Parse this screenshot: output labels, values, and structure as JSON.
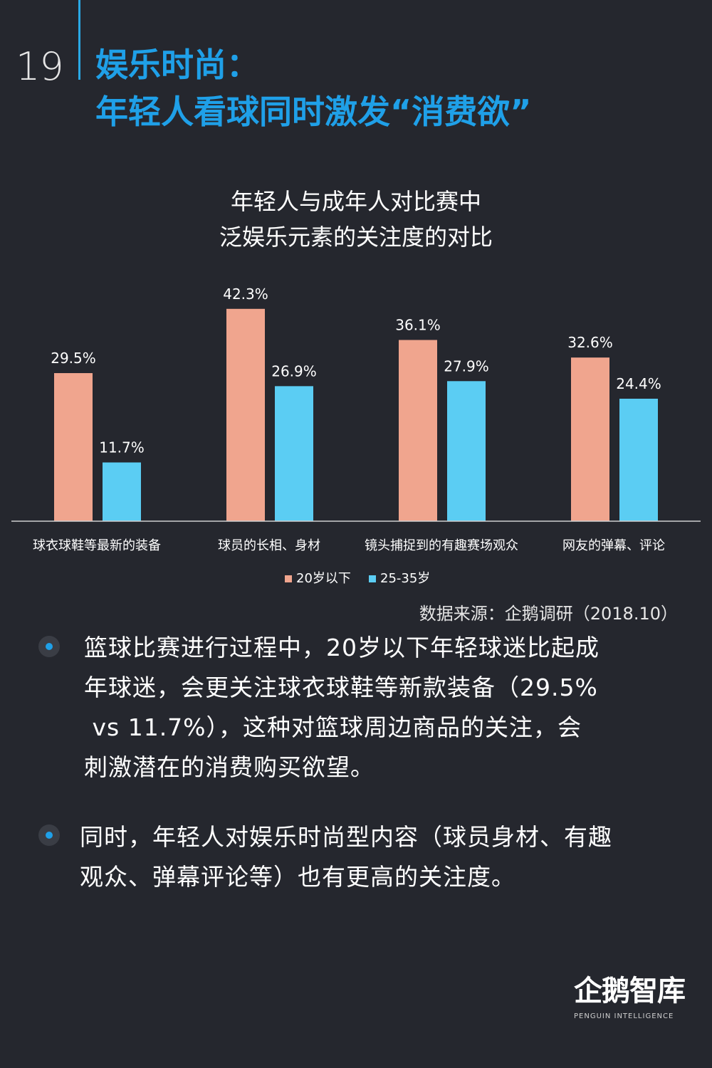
{
  "header": {
    "page_number": "19",
    "title_line1": "娱乐时尚：",
    "title_line2": "年轻人看球同时激发“消费欲”"
  },
  "chart_data": {
    "type": "bar",
    "title_line1": "年轻人与成年人对比赛中",
    "title_line2": "泛娱乐元素的关注度的对比",
    "categories": [
      "球衣球鞋等最新的装备",
      "球员的长相、身材",
      "镜头捕捉到的有趣赛场观众",
      "网友的弹幕、评论"
    ],
    "series": [
      {
        "name": "20岁以下",
        "values": [
          29.5,
          42.3,
          36.1,
          32.6
        ],
        "labels": [
          "29.5%",
          "42.3%",
          "36.1%",
          "32.6%"
        ],
        "color": "#f0a58e"
      },
      {
        "name": "25-35岁",
        "values": [
          11.7,
          26.9,
          27.9,
          24.4
        ],
        "labels": [
          "11.7%",
          "26.9%",
          "27.9%",
          "24.4%"
        ],
        "color": "#5bcdf3"
      }
    ],
    "ylim": [
      0,
      50
    ],
    "legend_position": "bottom-center",
    "grid": false
  },
  "source": "数据来源：企鹅调研（2018.10）",
  "paragraphs": [
    {
      "lines": [
        "篮球比赛进行过程中，20岁以下年轻球迷比起成",
        "年球迷，会更关注球衣球鞋等新款装备（29.5%",
        " vs 11.7%），这种对篮球周边商品的关注，会",
        "刺激潜在的消费购买欲望。"
      ]
    },
    {
      "lines": [
        "同时，年轻人对娱乐时尚型内容（球员身材、有趣",
        "观众、弹幕评论等）也有更高的关注度。"
      ]
    }
  ],
  "logo": {
    "name": "企鹅智库",
    "subtitle": "PENGUIN INTELLIGENCE"
  }
}
